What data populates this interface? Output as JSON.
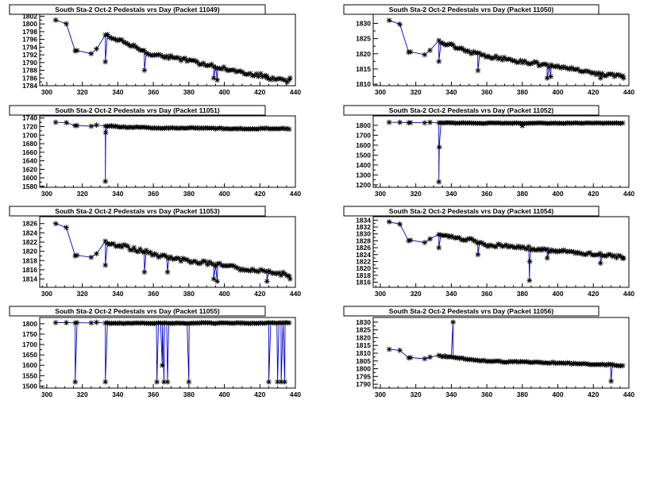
{
  "figure": {
    "title": "South Sta-2 Oct-2 Pedestals vrs Day"
  },
  "chart_data": [
    {
      "type": "line",
      "title": "South Sta-2 Oct-2 Pedestals vrs Day (Packet 11049)",
      "xlabel": "",
      "ylabel": "",
      "xlim": [
        296,
        440
      ],
      "ylim": [
        1784,
        1802.5
      ],
      "xticks": [
        300,
        320,
        340,
        360,
        380,
        400,
        420,
        440
      ],
      "yticks": [
        1784,
        1786,
        1788,
        1790,
        1792,
        1794,
        1796,
        1798,
        1800,
        1802
      ],
      "series": [
        {
          "name": "Packet 11049",
          "base": 1789.5,
          "start": 1801,
          "early": 1793,
          "slope": -0.09,
          "noise": 0.9,
          "spikes": [
            [
              333,
              1790.2
            ],
            [
              355,
              1788
            ],
            [
              394,
              1786
            ],
            [
              396,
              1785.5
            ],
            [
              424,
              1786
            ],
            [
              437,
              1786
            ]
          ]
        }
      ]
    },
    {
      "type": "line",
      "title": "South Sta-2 Oct-2 Pedestals vrs Day (Packet 11050)",
      "xlabel": "",
      "ylabel": "",
      "xlim": [
        296,
        440
      ],
      "ylim": [
        1809.5,
        1833
      ],
      "xticks": [
        300,
        320,
        340,
        360,
        380,
        400,
        420,
        440
      ],
      "yticks": [
        1810,
        1815,
        1820,
        1825,
        1830
      ],
      "series": [
        {
          "name": "Packet 11050",
          "base": 1816.5,
          "start": 1831,
          "early": 1820.5,
          "slope": -0.085,
          "noise": 1.1,
          "spikes": [
            [
              333,
              1817.5
            ],
            [
              355,
              1814.5
            ],
            [
              394,
              1812
            ],
            [
              396,
              1812.5
            ],
            [
              424,
              1812
            ],
            [
              437,
              1812
            ]
          ]
        }
      ]
    },
    {
      "type": "line",
      "title": "South Sta-2 Oct-2 Pedestals vrs Day (Packet 11051)",
      "xlabel": "",
      "ylabel": "",
      "xlim": [
        296,
        440
      ],
      "ylim": [
        1578,
        1745
      ],
      "xticks": [
        300,
        320,
        340,
        360,
        380,
        400,
        420,
        440
      ],
      "yticks": [
        1580,
        1600,
        1620,
        1640,
        1660,
        1680,
        1700,
        1720,
        1740
      ],
      "series": [
        {
          "name": "Packet 11051",
          "base": 1716,
          "start": 1730,
          "early": 1722,
          "slope": -0.03,
          "noise": 2.5,
          "spikes": [
            [
              333,
              1592
            ],
            [
              333.2,
              1706
            ]
          ]
        }
      ]
    },
    {
      "type": "line",
      "title": "South Sta-2 Oct-2 Pedestals vrs Day (Packet 11052)",
      "xlabel": "",
      "ylabel": "",
      "xlim": [
        296,
        440
      ],
      "ylim": [
        1175,
        1895
      ],
      "xticks": [
        300,
        320,
        340,
        360,
        380,
        400,
        420,
        440
      ],
      "yticks": [
        1200,
        1300,
        1400,
        1500,
        1600,
        1700,
        1800
      ],
      "series": [
        {
          "name": "Packet 11052",
          "base": 1822,
          "start": 1830,
          "early": 1826,
          "slope": -0.01,
          "noise": 6,
          "spikes": [
            [
              333,
              1230
            ],
            [
              333.2,
              1580
            ],
            [
              380,
              1795
            ]
          ]
        }
      ]
    },
    {
      "type": "line",
      "title": "South Sta-2 Oct-2 Pedestals vrs Day (Packet 11053)",
      "xlabel": "",
      "ylabel": "",
      "xlim": [
        296,
        440
      ],
      "ylim": [
        1812.2,
        1827.5
      ],
      "xticks": [
        300,
        320,
        340,
        360,
        380,
        400,
        420,
        440
      ],
      "yticks": [
        1814,
        1816,
        1818,
        1820,
        1822,
        1824,
        1826
      ],
      "series": [
        {
          "name": "Packet 11053",
          "base": 1817.5,
          "start": 1826,
          "early": 1819,
          "slope": -0.06,
          "noise": 0.8,
          "spikes": [
            [
              333,
              1817
            ],
            [
              355,
              1815.5
            ],
            [
              368,
              1815.5
            ],
            [
              394,
              1814
            ],
            [
              396,
              1813.5
            ],
            [
              424,
              1813.5
            ],
            [
              437,
              1814
            ]
          ]
        }
      ]
    },
    {
      "type": "line",
      "title": "South Sta-2 Oct-2 Pedestals vrs Day (Packet 11054)",
      "xlabel": "",
      "ylabel": "",
      "xlim": [
        296,
        440
      ],
      "ylim": [
        1814.5,
        1835
      ],
      "xticks": [
        300,
        320,
        340,
        360,
        380,
        400,
        420,
        440
      ],
      "yticks": [
        1816,
        1818,
        1820,
        1822,
        1824,
        1826,
        1828,
        1830,
        1832,
        1834
      ],
      "series": [
        {
          "name": "Packet 11054",
          "base": 1825.5,
          "start": 1833.5,
          "early": 1828,
          "slope": -0.05,
          "noise": 0.9,
          "spikes": [
            [
              333,
              1826
            ],
            [
              355,
              1824
            ],
            [
              384,
              1816.5
            ],
            [
              384.2,
              1822
            ],
            [
              394,
              1823
            ],
            [
              424,
              1821.5
            ],
            [
              437,
              1823
            ]
          ]
        }
      ]
    },
    {
      "type": "line",
      "title": "South Sta-2 Oct-2 Pedestals vrs Day (Packet 11055)",
      "xlabel": "",
      "ylabel": "",
      "xlim": [
        296,
        440
      ],
      "ylim": [
        1490,
        1830
      ],
      "xticks": [
        300,
        320,
        340,
        360,
        380,
        400,
        420,
        440
      ],
      "yticks": [
        1500,
        1550,
        1600,
        1650,
        1700,
        1750,
        1800
      ],
      "series": [
        {
          "name": "Packet 11055",
          "base": 1803,
          "start": 1805,
          "early": 1804,
          "slope": 0,
          "noise": 4,
          "spikes": [
            [
              316,
              1520
            ],
            [
              333,
              1520
            ],
            [
              362,
              1520
            ],
            [
              365,
              1600
            ],
            [
              366,
              1520
            ],
            [
              368,
              1520
            ],
            [
              380,
              1520
            ],
            [
              425,
              1520
            ],
            [
              430,
              1520
            ],
            [
              432,
              1520
            ],
            [
              434,
              1520
            ]
          ]
        }
      ]
    },
    {
      "type": "line",
      "title": "South Sta-2 Oct-2 Pedestals vrs Day (Packet 11056)",
      "xlabel": "",
      "ylabel": "",
      "xlim": [
        296,
        440
      ],
      "ylim": [
        1787.5,
        1833
      ],
      "xticks": [
        300,
        320,
        340,
        360,
        380,
        400,
        420,
        440
      ],
      "yticks": [
        1790,
        1795,
        1800,
        1805,
        1810,
        1815,
        1820,
        1825,
        1830
      ],
      "series": [
        {
          "name": "Packet 11056",
          "base": 1804,
          "start": 1812.5,
          "early": 1807,
          "slope": -0.04,
          "noise": 0.8,
          "spikes": [
            [
              341,
              1830
            ],
            [
              430,
              1792
            ]
          ]
        }
      ]
    }
  ],
  "colors": {
    "line": "#0000cc",
    "marker": "#000000",
    "frame": "#000000",
    "background": "#ffffff"
  }
}
